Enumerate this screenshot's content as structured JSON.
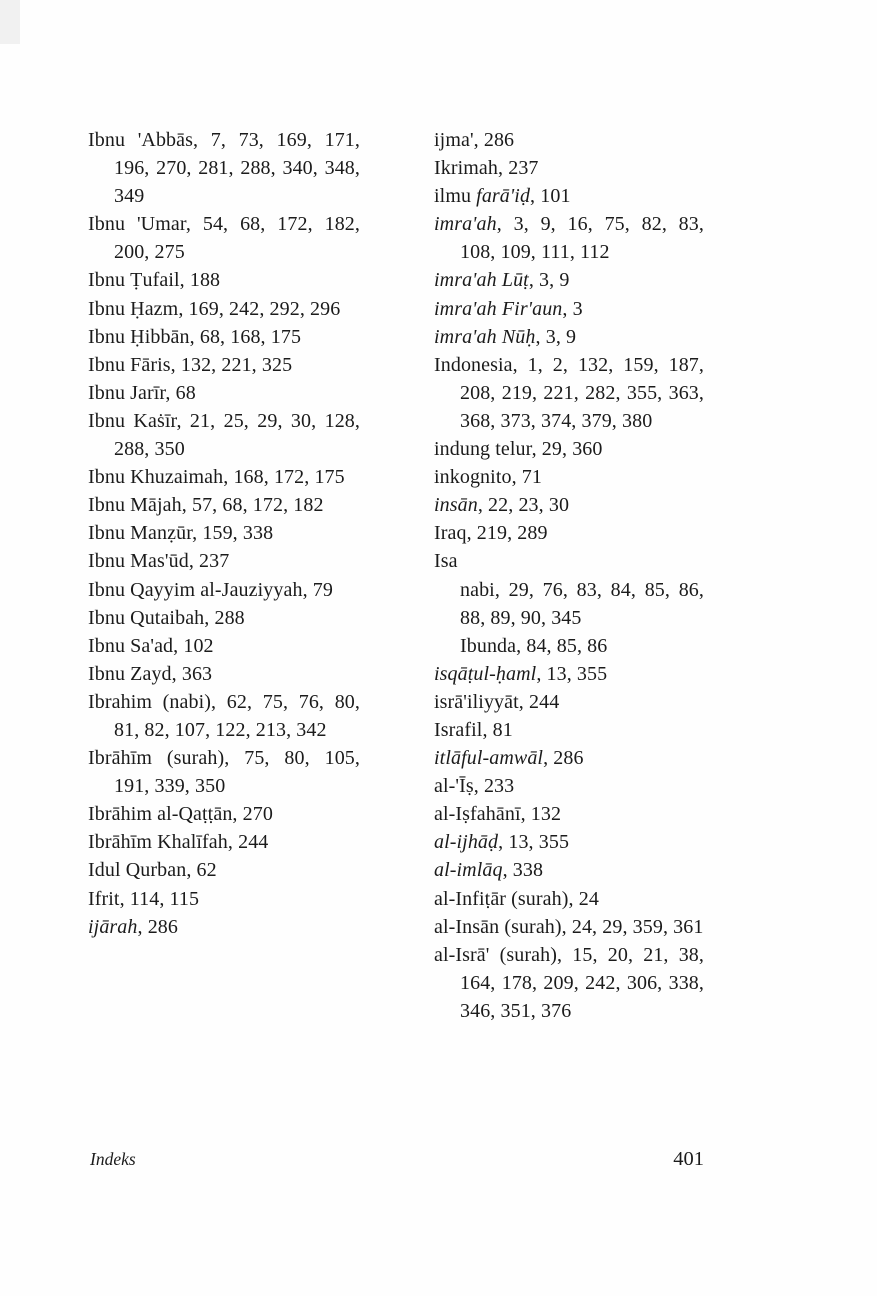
{
  "footer": {
    "left_label": "Indeks",
    "right_page": "401"
  },
  "text_color": "#1b1b1b",
  "background_color": "#fefefe",
  "columns": [
    {
      "name": "left",
      "entries": [
        {
          "term": [
            {
              "t": "Ibnu 'Abbās",
              "i": false
            }
          ],
          "pages": "7, 73, 169, 171, 196, 270, 281, 288, 340, 348, 349"
        },
        {
          "term": [
            {
              "t": "Ibnu 'Umar",
              "i": false
            }
          ],
          "pages": "54, 68, 172, 182, 200, 275"
        },
        {
          "term": [
            {
              "t": "Ibnu Ṭufail",
              "i": false
            }
          ],
          "pages": "188"
        },
        {
          "term": [
            {
              "t": "Ibnu Ḥazm",
              "i": false
            }
          ],
          "pages": "169, 242, 292, 296"
        },
        {
          "term": [
            {
              "t": "Ibnu Ḥibbān",
              "i": false
            }
          ],
          "pages": "68, 168, 175"
        },
        {
          "term": [
            {
              "t": "Ibnu Fāris",
              "i": false
            }
          ],
          "pages": "132, 221, 325"
        },
        {
          "term": [
            {
              "t": "Ibnu Jarīr",
              "i": false
            }
          ],
          "pages": "68"
        },
        {
          "term": [
            {
              "t": "Ibnu Kaṡīr",
              "i": false
            }
          ],
          "pages": "21, 25, 29, 30, 128, 288, 350"
        },
        {
          "term": [
            {
              "t": "Ibnu Khuzaimah",
              "i": false
            }
          ],
          "pages": "168, 172, 175"
        },
        {
          "term": [
            {
              "t": "Ibnu Mājah",
              "i": false
            }
          ],
          "pages": "57, 68, 172, 182"
        },
        {
          "term": [
            {
              "t": "Ibnu Manẓūr",
              "i": false
            }
          ],
          "pages": "159, 338"
        },
        {
          "term": [
            {
              "t": "Ibnu Mas'ūd",
              "i": false
            }
          ],
          "pages": "237"
        },
        {
          "term": [
            {
              "t": "Ibnu Qayyim al-Jauziyyah",
              "i": false
            }
          ],
          "pages": "79"
        },
        {
          "term": [
            {
              "t": "Ibnu Qutaibah",
              "i": false
            }
          ],
          "pages": "288"
        },
        {
          "term": [
            {
              "t": "Ibnu Sa'ad",
              "i": false
            }
          ],
          "pages": "102"
        },
        {
          "term": [
            {
              "t": "Ibnu Zayd",
              "i": false
            }
          ],
          "pages": "363"
        },
        {
          "term": [
            {
              "t": "Ibrahim (nabi)",
              "i": false
            }
          ],
          "pages": "62, 75, 76, 80, 81, 82, 107, 122, 213, 342"
        },
        {
          "term": [
            {
              "t": "Ibrāhīm (surah)",
              "i": false
            }
          ],
          "pages": "75, 80, 105, 191, 339, 350"
        },
        {
          "term": [
            {
              "t": "Ibrāhim al-Qaṭṭān",
              "i": false
            }
          ],
          "pages": "270"
        },
        {
          "term": [
            {
              "t": "Ibrāhīm Khalīfah",
              "i": false
            }
          ],
          "pages": "244"
        },
        {
          "term": [
            {
              "t": "Idul Qurban",
              "i": false
            }
          ],
          "pages": "62"
        },
        {
          "term": [
            {
              "t": "Ifrit",
              "i": false
            }
          ],
          "pages": "114, 115"
        },
        {
          "term": [
            {
              "t": "ijārah",
              "i": true
            }
          ],
          "pages": "286"
        }
      ]
    },
    {
      "name": "right",
      "entries": [
        {
          "term": [
            {
              "t": "ijma'",
              "i": false
            }
          ],
          "pages": "286"
        },
        {
          "term": [
            {
              "t": "Ikrimah",
              "i": false
            }
          ],
          "pages": "237"
        },
        {
          "term": [
            {
              "t": "ilmu ",
              "i": false
            },
            {
              "t": "farā'iḍ",
              "i": true
            }
          ],
          "pages": "101"
        },
        {
          "term": [
            {
              "t": "imra'ah",
              "i": true
            }
          ],
          "pages": "3, 9, 16, 75, 82, 83, 108, 109, 111, 112"
        },
        {
          "term": [
            {
              "t": "imra'ah Lūṭ",
              "i": true
            }
          ],
          "pages": "3, 9"
        },
        {
          "term": [
            {
              "t": "imra'ah Fir'aun",
              "i": true
            }
          ],
          "pages": "3"
        },
        {
          "term": [
            {
              "t": "imra'ah Nūḥ",
              "i": true
            }
          ],
          "pages": "3, 9"
        },
        {
          "term": [
            {
              "t": "Indonesia",
              "i": false
            }
          ],
          "pages": "1, 2, 132, 159, 187, 208, 219, 221, 282, 355, 363, 368, 373, 374, 379, 380"
        },
        {
          "term": [
            {
              "t": "indung telur",
              "i": false
            }
          ],
          "pages": "29, 360"
        },
        {
          "term": [
            {
              "t": "inkognito",
              "i": false
            }
          ],
          "pages": "71"
        },
        {
          "term": [
            {
              "t": "insān",
              "i": true
            }
          ],
          "pages": "22, 23, 30"
        },
        {
          "term": [
            {
              "t": "Iraq",
              "i": false
            }
          ],
          "pages": "219, 289"
        },
        {
          "term": [
            {
              "t": "Isa",
              "i": false
            }
          ],
          "pages": ""
        },
        {
          "term": [
            {
              "t": "nabi",
              "i": false
            }
          ],
          "pages": "29, 76, 83, 84, 85, 86, 88, 89, 90, 345",
          "sub": true
        },
        {
          "term": [
            {
              "t": "Ibunda",
              "i": false
            }
          ],
          "pages": "84, 85, 86",
          "sub": true
        },
        {
          "term": [
            {
              "t": "isqāṭul-ḥaml",
              "i": true
            }
          ],
          "pages": "13, 355"
        },
        {
          "term": [
            {
              "t": "isrā'iliyyāt",
              "i": false
            }
          ],
          "pages": "244"
        },
        {
          "term": [
            {
              "t": "Israfil",
              "i": false
            }
          ],
          "pages": "81"
        },
        {
          "term": [
            {
              "t": "itlāful-amwāl",
              "i": true
            }
          ],
          "pages": "286"
        },
        {
          "term": [
            {
              "t": "al-'Īṣ",
              "i": false
            }
          ],
          "pages": "233"
        },
        {
          "term": [
            {
              "t": "al-Iṣfahānī",
              "i": false
            }
          ],
          "pages": "132"
        },
        {
          "term": [
            {
              "t": "al-ijhāḍ",
              "i": true
            }
          ],
          "pages": "13, 355"
        },
        {
          "term": [
            {
              "t": "al-imlāq",
              "i": true
            }
          ],
          "pages": "338"
        },
        {
          "term": [
            {
              "t": "al-Infiṭār (surah)",
              "i": false
            }
          ],
          "pages": "24"
        },
        {
          "term": [
            {
              "t": "al-Insān (surah)",
              "i": false
            }
          ],
          "pages": "24, 29, 359, 361"
        },
        {
          "term": [
            {
              "t": "al-Isrā' (surah)",
              "i": false
            }
          ],
          "pages": "15, 20, 21, 38, 164, 178, 209, 242, 306, 338, 346, 351, 376"
        }
      ]
    }
  ]
}
